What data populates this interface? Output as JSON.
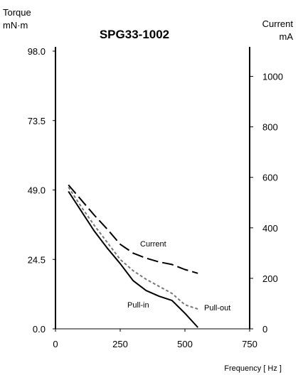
{
  "chart_data": {
    "type": "line",
    "title": "SPG33-1002",
    "left_axis": {
      "label": "Torque",
      "unit": "mN·m",
      "range": [
        0,
        98.0
      ],
      "ticks": [
        "0.0",
        "24.5",
        "49.0",
        "73.5",
        "98.0"
      ]
    },
    "right_axis": {
      "label": "Current",
      "unit": "mA",
      "range": [
        0,
        1100
      ],
      "ticks": [
        "0",
        "200",
        "400",
        "600",
        "800",
        "1000"
      ]
    },
    "x_axis": {
      "label": "Frequency [ Hz ]",
      "range": [
        0,
        750
      ],
      "ticks": [
        "0",
        "250",
        "500",
        "750"
      ]
    },
    "grid": false,
    "series": [
      {
        "name": "Pull-in",
        "axis": "left",
        "style": "solid",
        "color": "#000000",
        "x": [
          50,
          100,
          150,
          200,
          250,
          300,
          350,
          400,
          450,
          500,
          550
        ],
        "y": [
          48.5,
          41.5,
          34.5,
          28.5,
          23.0,
          17.0,
          13.5,
          11.5,
          10.0,
          5.5,
          0.5
        ]
      },
      {
        "name": "Pull-out",
        "axis": "left",
        "style": "dotted",
        "color": "#777777",
        "x": [
          50,
          100,
          150,
          200,
          250,
          300,
          350,
          400,
          450,
          500,
          550
        ],
        "y": [
          50.0,
          43.0,
          36.5,
          30.5,
          24.5,
          20.5,
          17.5,
          15.0,
          12.5,
          8.5,
          7.0
        ]
      },
      {
        "name": "Current",
        "axis": "right",
        "style": "dashed",
        "color": "#000000",
        "x": [
          50,
          100,
          150,
          200,
          250,
          300,
          350,
          400,
          450,
          500,
          550
        ],
        "y": [
          570,
          510,
          450,
          395,
          335,
          300,
          280,
          265,
          255,
          235,
          220
        ]
      }
    ]
  }
}
